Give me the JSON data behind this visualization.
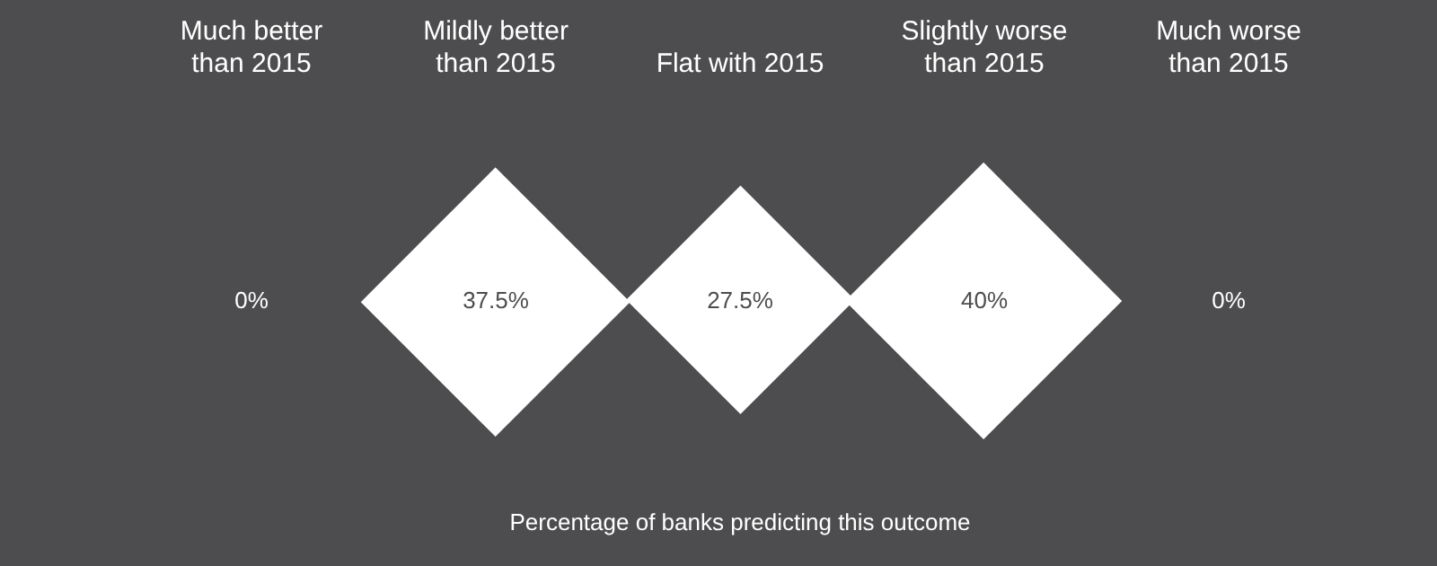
{
  "chart_data": {
    "type": "other",
    "xlabel": "Percentage of banks predicting this outcome",
    "categories": [
      "Much better than 2015",
      "Mildly better than 2015",
      "Flat with 2015",
      "Slightly worse than 2015",
      "Much worse than 2015"
    ],
    "values": [
      0,
      37.5,
      27.5,
      40,
      0
    ],
    "value_labels": [
      "0%",
      "37.5%",
      "27.5%",
      "40%",
      "0%"
    ],
    "color": "#ffffff"
  }
}
